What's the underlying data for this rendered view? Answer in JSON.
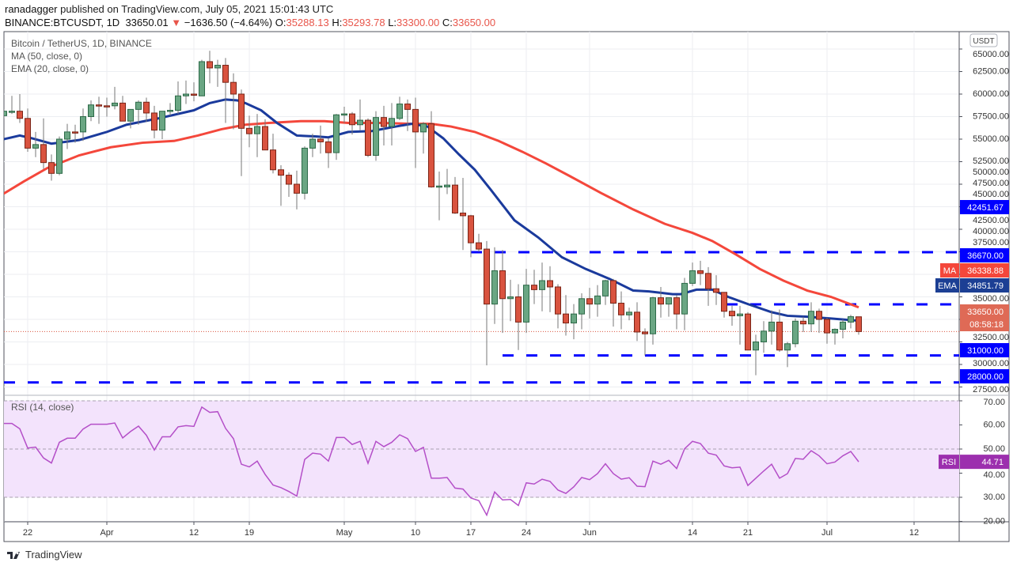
{
  "header": {
    "author": "ranadagger",
    "published": "published on TradingView.com, July 05, 2021 15:01:43 UTC",
    "symbol": "BINANCE:BTCUSDT, 1D",
    "last": "33650.01",
    "change": "−1636.50 (−4.64%)",
    "o_label": "O:",
    "o": "35288.13",
    "h_label": "H:",
    "h": "35293.78",
    "l_label": "L:",
    "l": "33300.00",
    "c_label": "C:",
    "c": "33650.00"
  },
  "legend": {
    "title": "Bitcoin / TetherUS, 1D, BINANCE",
    "ma": "MA (50, close, 0)",
    "ema": "EMA (20, close, 0)",
    "rsi": "RSI (14, close)"
  },
  "colors": {
    "up": "#6aa683",
    "up_border": "#2d6a48",
    "down": "#d9533f",
    "down_border": "#7a2416",
    "ema": "#1a3a9c",
    "ma": "#f4473b",
    "level": "#0000ff",
    "rsi": "#b44fc8",
    "rsi_band": "#f3e3fc"
  },
  "chart_data": {
    "type": "candlestick",
    "title": "Bitcoin / TetherUS, 1D, BINANCE",
    "currency": "USDT",
    "start_day_index": -3,
    "candles_ohlc": [
      [
        57600,
        58300,
        57300,
        58100
      ],
      [
        58000,
        59800,
        57800,
        58100
      ],
      [
        58100,
        60000,
        56800,
        57300
      ],
      [
        57300,
        58400,
        53600,
        54000
      ],
      [
        54000,
        55800,
        53000,
        54400
      ],
      [
        54400,
        57300,
        51700,
        52400
      ],
      [
        52400,
        53300,
        50400,
        51200
      ],
      [
        51200,
        55300,
        51000,
        55000
      ],
      [
        55000,
        56700,
        53900,
        55800
      ],
      [
        55800,
        56600,
        54600,
        55700
      ],
      [
        55800,
        58400,
        54800,
        57500
      ],
      [
        57500,
        59300,
        57000,
        58800
      ],
      [
        58800,
        59700,
        56700,
        58700
      ],
      [
        58700,
        59600,
        57500,
        58600
      ],
      [
        58700,
        60800,
        58300,
        59000
      ],
      [
        59000,
        59800,
        57000,
        57000
      ],
      [
        57000,
        58300,
        56200,
        58300
      ],
      [
        58300,
        59300,
        56600,
        59100
      ],
      [
        59100,
        59600,
        56900,
        57900
      ],
      [
        57900,
        58700,
        55100,
        56000
      ],
      [
        56000,
        58100,
        55000,
        58100
      ],
      [
        58100,
        59000,
        57600,
        58200
      ],
      [
        58200,
        61400,
        57800,
        59800
      ],
      [
        59800,
        61500,
        58900,
        60000
      ],
      [
        60000,
        61300,
        59200,
        59900
      ],
      [
        59800,
        63800,
        59800,
        63600
      ],
      [
        63600,
        64800,
        61200,
        62900
      ],
      [
        62900,
        63800,
        60800,
        63200
      ],
      [
        63200,
        64000,
        56800,
        61300
      ],
      [
        61300,
        62300,
        56100,
        60000
      ],
      [
        60000,
        60500,
        50900,
        56200
      ],
      [
        56200,
        57600,
        54100,
        55600
      ],
      [
        55600,
        57800,
        53000,
        56400
      ],
      [
        56400,
        57200,
        53800,
        53800
      ],
      [
        53800,
        55600,
        51200,
        51600
      ],
      [
        51600,
        52100,
        47600,
        51000
      ],
      [
        51000,
        51300,
        48600,
        50000
      ],
      [
        50000,
        51500,
        47200,
        49000
      ],
      [
        49000,
        54200,
        48300,
        54000
      ],
      [
        54000,
        55600,
        53000,
        55000
      ],
      [
        55000,
        56500,
        53400,
        54700
      ],
      [
        54700,
        55100,
        51800,
        53500
      ],
      [
        53500,
        57800,
        52700,
        57700
      ],
      [
        57700,
        58600,
        56800,
        57800
      ],
      [
        57800,
        58000,
        55500,
        56600
      ],
      [
        56600,
        59400,
        56000,
        57100
      ],
      [
        57100,
        57300,
        53000,
        53200
      ],
      [
        53200,
        58100,
        52600,
        57400
      ],
      [
        57400,
        58700,
        54300,
        56400
      ],
      [
        56400,
        59000,
        54300,
        57300
      ],
      [
        57300,
        59700,
        57100,
        58900
      ],
      [
        58900,
        59400,
        55900,
        58300
      ],
      [
        58300,
        59600,
        51800,
        55800
      ],
      [
        55800,
        56900,
        53400,
        56700
      ],
      [
        56700,
        58100,
        49600,
        49700
      ],
      [
        49700,
        51400,
        46000,
        49800
      ],
      [
        49700,
        51700,
        48900,
        49900
      ],
      [
        49900,
        50800,
        46700,
        46800
      ],
      [
        46800,
        50700,
        42700,
        46500
      ],
      [
        46500,
        46600,
        41900,
        43500
      ],
      [
        43500,
        44500,
        42500,
        42800
      ],
      [
        42800,
        43700,
        29900,
        36700
      ],
      [
        36700,
        43000,
        34500,
        40400
      ],
      [
        40400,
        42700,
        33500,
        37300
      ],
      [
        37300,
        39400,
        34800,
        37500
      ],
      [
        37500,
        38900,
        31600,
        34700
      ],
      [
        34700,
        40600,
        33500,
        38800
      ],
      [
        38800,
        40500,
        36700,
        38300
      ],
      [
        38300,
        41300,
        35900,
        39300
      ],
      [
        39300,
        40900,
        35800,
        38600
      ],
      [
        38600,
        38900,
        34000,
        35600
      ],
      [
        35600,
        37700,
        33200,
        34600
      ],
      [
        34600,
        36700,
        32800,
        35600
      ],
      [
        35600,
        37900,
        33900,
        37300
      ],
      [
        37300,
        38500,
        35100,
        36700
      ],
      [
        36700,
        38800,
        35300,
        37600
      ],
      [
        37600,
        39400,
        36600,
        39300
      ],
      [
        39300,
        39500,
        34200,
        36800
      ],
      [
        36800,
        38100,
        33900,
        35500
      ],
      [
        35500,
        36300,
        34900,
        35800
      ],
      [
        35800,
        36900,
        32600,
        33600
      ],
      [
        33600,
        34000,
        31000,
        33400
      ],
      [
        33400,
        37500,
        32200,
        37400
      ],
      [
        37400,
        38600,
        35200,
        36700
      ],
      [
        36700,
        37400,
        35300,
        37400
      ],
      [
        37400,
        37700,
        33900,
        35600
      ],
      [
        35600,
        39600,
        33800,
        39000
      ],
      [
        39000,
        41300,
        38700,
        40400
      ],
      [
        40400,
        41500,
        38800,
        40100
      ],
      [
        40100,
        40800,
        36500,
        38400
      ],
      [
        38400,
        39900,
        36600,
        38000
      ],
      [
        38000,
        38000,
        35200,
        35900
      ],
      [
        35900,
        36500,
        34300,
        35400
      ],
      [
        35400,
        36500,
        32200,
        35600
      ],
      [
        35600,
        35800,
        31600,
        31600
      ],
      [
        31600,
        33300,
        28800,
        32500
      ],
      [
        32500,
        34800,
        31300,
        33700
      ],
      [
        33700,
        36000,
        32200,
        34700
      ],
      [
        34700,
        36100,
        31400,
        31600
      ],
      [
        31600,
        32500,
        29700,
        32300
      ],
      [
        32300,
        35100,
        31900,
        34800
      ],
      [
        34800,
        35300,
        33600,
        34500
      ],
      [
        34500,
        36900,
        33600,
        35900
      ],
      [
        35900,
        36200,
        33500,
        35000
      ],
      [
        35000,
        35200,
        32300,
        33500
      ],
      [
        33500,
        34000,
        32200,
        33900
      ],
      [
        33900,
        35000,
        32900,
        34700
      ],
      [
        34700,
        35500,
        34000,
        35300
      ],
      [
        35288.13,
        35293.78,
        33300,
        33650
      ]
    ],
    "ema20_trace": [
      [
        -3.5,
        54900
      ],
      [
        -1,
        55400
      ],
      [
        0.5,
        55100
      ],
      [
        3,
        54500
      ],
      [
        6.5,
        54900
      ],
      [
        10,
        55800
      ],
      [
        12.5,
        56600
      ],
      [
        16.5,
        57300
      ],
      [
        21,
        58200
      ],
      [
        23,
        59000
      ],
      [
        25,
        59400
      ],
      [
        26.5,
        59300
      ],
      [
        27.5,
        59000
      ],
      [
        29.5,
        58200
      ],
      [
        31.5,
        56800
      ],
      [
        34,
        55400
      ],
      [
        36.5,
        55300
      ],
      [
        38,
        55200
      ],
      [
        40.5,
        55800
      ],
      [
        43.5,
        55900
      ],
      [
        46.5,
        56400
      ],
      [
        48.5,
        56700
      ],
      [
        50.5,
        56400
      ],
      [
        52.5,
        55100
      ],
      [
        54.5,
        53300
      ],
      [
        56.5,
        51600
      ],
      [
        58.5,
        49400
      ],
      [
        61.5,
        46000
      ],
      [
        64.5,
        44100
      ],
      [
        67.5,
        41900
      ],
      [
        70.5,
        40600
      ],
      [
        73.5,
        39500
      ],
      [
        76.5,
        38200
      ],
      [
        78.5,
        38100
      ],
      [
        81.5,
        37800
      ],
      [
        82.5,
        37800
      ],
      [
        84.5,
        38300
      ],
      [
        86.5,
        38300
      ],
      [
        88.5,
        37500
      ],
      [
        91,
        36700
      ],
      [
        94,
        35800
      ],
      [
        96,
        35400
      ],
      [
        98.5,
        35300
      ],
      [
        101.5,
        35100
      ],
      [
        105,
        34851.79
      ]
    ],
    "ma50_trace": [
      [
        -3.5,
        48700
      ],
      [
        -0.5,
        50300
      ],
      [
        2.5,
        51800
      ],
      [
        6.5,
        53200
      ],
      [
        10.5,
        54100
      ],
      [
        14.5,
        54600
      ],
      [
        18.5,
        54800
      ],
      [
        21.5,
        55400
      ],
      [
        24.5,
        56100
      ],
      [
        27.5,
        56600
      ],
      [
        30.5,
        56800
      ],
      [
        34.5,
        57000
      ],
      [
        37.5,
        57000
      ],
      [
        40.5,
        56800
      ],
      [
        44.5,
        56800
      ],
      [
        48.5,
        56700
      ],
      [
        51,
        56700
      ],
      [
        53.5,
        56400
      ],
      [
        56.5,
        55800
      ],
      [
        59.5,
        54800
      ],
      [
        62.5,
        53600
      ],
      [
        65.5,
        52300
      ],
      [
        68.5,
        50900
      ],
      [
        72.5,
        49000
      ],
      [
        76.5,
        47200
      ],
      [
        80.5,
        45600
      ],
      [
        84,
        44600
      ],
      [
        86.5,
        43700
      ],
      [
        89.5,
        42200
      ],
      [
        92.5,
        40600
      ],
      [
        95.5,
        39300
      ],
      [
        98.5,
        38200
      ],
      [
        101.5,
        37500
      ],
      [
        105,
        36338.88
      ]
    ],
    "levels": [
      {
        "value": 42451.67,
        "label": "42451.67",
        "from_day": 56
      },
      {
        "value": 36670.0,
        "label": "36670.00",
        "from_day": 88.3
      },
      {
        "value": 31000.0,
        "label": "31000.00",
        "from_day": 60
      },
      {
        "value": 28000.0,
        "label": "28000.00",
        "from_day": -3
      }
    ],
    "last_price": {
      "value": 33650.0,
      "label": "33650.00",
      "countdown": "08:58:18"
    },
    "ma_tag": {
      "name": "MA",
      "value": "36338.88"
    },
    "ema_tag": {
      "name": "EMA",
      "value": "34851.79"
    },
    "price_ticks": [
      "65000.00",
      "62500.00",
      "60000.00",
      "57500.00",
      "55000.00",
      "52500.00",
      "50000.00",
      "47500.00",
      "45000.00",
      "42500.00",
      "40000.00",
      "37500.00",
      "35000.00",
      "32500.00",
      "30000.00",
      "27500.00"
    ],
    "price_tick_values": [
      65000,
      62500,
      60000,
      57500,
      55000,
      52500,
      50000,
      47500,
      45000,
      42500,
      40000,
      37500,
      35000,
      32500,
      30000,
      27500
    ],
    "x_ticks": [
      {
        "label": "22",
        "day": 0
      },
      {
        "label": "Apr",
        "day": 10
      },
      {
        "label": "12",
        "day": 21
      },
      {
        "label": "19",
        "day": 28
      },
      {
        "label": "May",
        "day": 40
      },
      {
        "label": "10",
        "day": 49
      },
      {
        "label": "17",
        "day": 56
      },
      {
        "label": "24",
        "day": 63
      },
      {
        "label": "Jun",
        "day": 71
      },
      {
        "label": "14",
        "day": 84
      },
      {
        "label": "21",
        "day": 91
      },
      {
        "label": "Jul",
        "day": 101
      },
      {
        "label": "12",
        "day": 112
      }
    ],
    "rsi": {
      "period": 14,
      "band": [
        30,
        70
      ],
      "ticks": [
        "70.00",
        "60.00",
        "50.00",
        "40.00",
        "30.00",
        "20.00"
      ],
      "tick_values": [
        70,
        60,
        50,
        40,
        30,
        20
      ],
      "tag": "RSI",
      "last": "44.71",
      "values": [
        60.6,
        60.6,
        58.4,
        50.4,
        50.8,
        46.3,
        44.2,
        52.8,
        54.5,
        54.5,
        58.3,
        60.3,
        60.3,
        60.3,
        60.8,
        54.6,
        57.3,
        59.5,
        55.7,
        49.6,
        55.1,
        55.1,
        59.2,
        59.7,
        59.4,
        67.4,
        65.2,
        65.5,
        58.6,
        54.3,
        43.7,
        42.6,
        45,
        39.5,
        35.1,
        34,
        32.4,
        30.5,
        45.7,
        48.3,
        47.9,
        45,
        54.8,
        54.8,
        51.9,
        53.2,
        44.1,
        53.2,
        51,
        52.8,
        55.9,
        54.3,
        49,
        50.7,
        37.9,
        37.9,
        38.2,
        33.8,
        33.4,
        29.7,
        28.6,
        22.6,
        32.2,
        28.9,
        29.1,
        26.6,
        36,
        35.5,
        37.5,
        36.6,
        33,
        31.6,
        34.3,
        38.2,
        37.3,
        39.8,
        43.9,
        39.8,
        37.5,
        38.1,
        34.6,
        34.4,
        45,
        43.7,
        45.3,
        41.9,
        50.1,
        53.2,
        52.3,
        48.3,
        47.5,
        43,
        42.2,
        42.5,
        34.9,
        37.9,
        40.9,
        43.7,
        37.9,
        39.8,
        46.1,
        45.8,
        49.3,
        47.2,
        43.9,
        44.6,
        47.2,
        49,
        44.71
      ]
    }
  },
  "footer": {
    "brand": "TradingView"
  }
}
